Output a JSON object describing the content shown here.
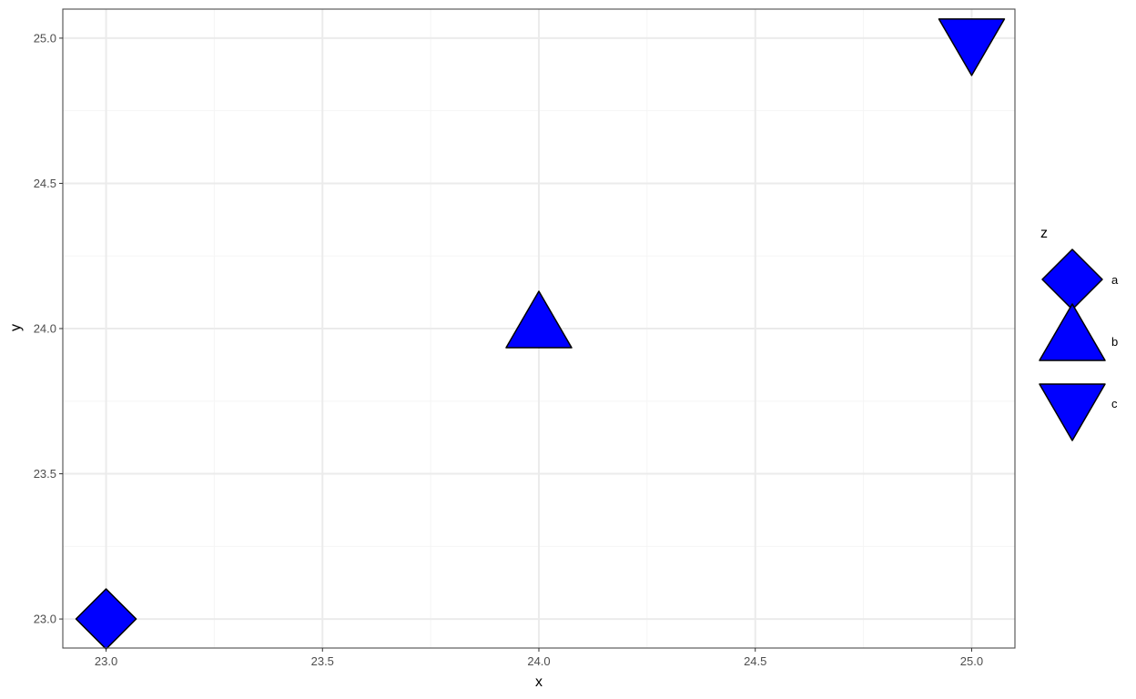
{
  "chart_data": {
    "type": "scatter",
    "xlabel": "x",
    "ylabel": "y",
    "xlim": [
      22.9,
      25.1
    ],
    "ylim": [
      22.9,
      25.1
    ],
    "x_ticks": [
      23.0,
      23.5,
      24.0,
      24.5,
      25.0
    ],
    "y_ticks": [
      23.0,
      23.5,
      24.0,
      24.5,
      25.0
    ],
    "x_tick_labels": [
      "23.0",
      "23.5",
      "24.0",
      "24.5",
      "25.0"
    ],
    "y_tick_labels": [
      "23.0",
      "23.5",
      "24.0",
      "24.5",
      "25.0"
    ],
    "grid": true,
    "legend": {
      "title": "z",
      "placement": "right",
      "entries": [
        {
          "label": "a",
          "shape": "diamond"
        },
        {
          "label": "b",
          "shape": "triangle-up"
        },
        {
          "label": "c",
          "shape": "triangle-down"
        }
      ]
    },
    "points": [
      {
        "x": 23,
        "y": 23,
        "z": "a",
        "shape": "diamond"
      },
      {
        "x": 24,
        "y": 24,
        "z": "b",
        "shape": "triangle-up"
      },
      {
        "x": 25,
        "y": 25,
        "z": "c",
        "shape": "triangle-down"
      }
    ],
    "colors": {
      "fill": "#0000ff",
      "stroke": "#000000",
      "panel_border": "#4d4d4d",
      "grid_major": "#ebebeb",
      "grid_minor": "#f5f5f5"
    }
  }
}
